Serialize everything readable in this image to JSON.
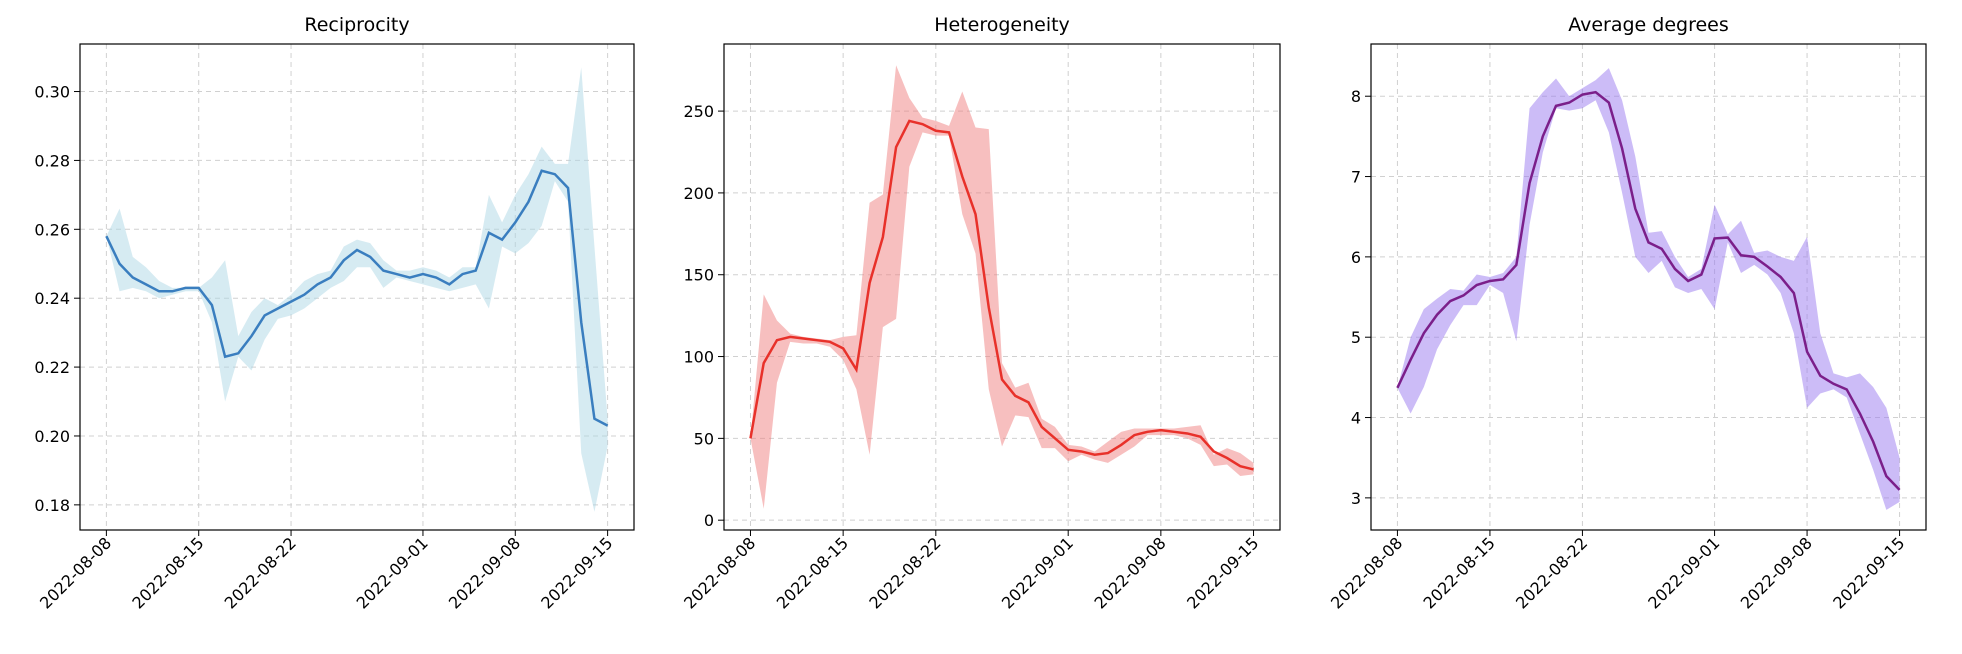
{
  "chart_data": [
    {
      "type": "line",
      "title": "Reciprocity",
      "x": [
        "2022-08-08",
        "2022-08-09",
        "2022-08-10",
        "2022-08-11",
        "2022-08-12",
        "2022-08-13",
        "2022-08-14",
        "2022-08-15",
        "2022-08-16",
        "2022-08-17",
        "2022-08-18",
        "2022-08-19",
        "2022-08-20",
        "2022-08-21",
        "2022-08-22",
        "2022-08-23",
        "2022-08-24",
        "2022-08-25",
        "2022-08-26",
        "2022-08-27",
        "2022-08-28",
        "2022-08-29",
        "2022-08-30",
        "2022-08-31",
        "2022-09-01",
        "2022-09-02",
        "2022-09-03",
        "2022-09-04",
        "2022-09-05",
        "2022-09-06",
        "2022-09-07",
        "2022-09-08",
        "2022-09-09",
        "2022-09-10",
        "2022-09-11",
        "2022-09-12",
        "2022-09-13",
        "2022-09-14",
        "2022-09-15"
      ],
      "series": [
        {
          "color": "#3a7ebf",
          "band_color": "#add8e6",
          "values": [
            0.258,
            0.25,
            0.246,
            0.244,
            0.242,
            0.242,
            0.243,
            0.243,
            0.238,
            0.223,
            0.224,
            0.229,
            0.235,
            0.237,
            0.239,
            0.241,
            0.244,
            0.246,
            0.251,
            0.254,
            0.252,
            0.248,
            0.247,
            0.246,
            0.247,
            0.246,
            0.244,
            0.247,
            0.248,
            0.259,
            0.257,
            0.262,
            0.268,
            0.277,
            0.276,
            0.272,
            0.233,
            0.205,
            0.203
          ],
          "upper": [
            0.258,
            0.266,
            0.252,
            0.249,
            0.245,
            0.243,
            0.243,
            0.243,
            0.246,
            0.251,
            0.229,
            0.236,
            0.24,
            0.238,
            0.241,
            0.245,
            0.247,
            0.248,
            0.255,
            0.257,
            0.256,
            0.251,
            0.248,
            0.248,
            0.249,
            0.248,
            0.246,
            0.249,
            0.249,
            0.27,
            0.262,
            0.27,
            0.276,
            0.284,
            0.279,
            0.279,
            0.307,
            0.255,
            0.205
          ],
          "lower": [
            0.258,
            0.242,
            0.243,
            0.242,
            0.24,
            0.241,
            0.242,
            0.242,
            0.233,
            0.21,
            0.223,
            0.219,
            0.228,
            0.234,
            0.235,
            0.237,
            0.24,
            0.243,
            0.245,
            0.249,
            0.249,
            0.243,
            0.246,
            0.245,
            0.244,
            0.243,
            0.242,
            0.243,
            0.244,
            0.237,
            0.255,
            0.253,
            0.256,
            0.261,
            0.274,
            0.268,
            0.195,
            0.178,
            0.197
          ]
        }
      ],
      "xlim": [
        "2022-08-06",
        "2022-09-17"
      ],
      "xticks": [
        "2022-08-08",
        "2022-08-15",
        "2022-08-22",
        "2022-09-01",
        "2022-09-08",
        "2022-09-15"
      ],
      "ylim": [
        0.1727,
        0.3138
      ],
      "yticks": [
        0.18,
        {
          "value": 0.2,
          "label": "0.20"
        },
        0.22,
        0.24,
        0.26,
        0.28,
        {
          "value": 0.3,
          "label": "0.30"
        }
      ],
      "grid": true
    },
    {
      "type": "line",
      "title": "Heterogeneity",
      "x": [
        "2022-08-08",
        "2022-08-09",
        "2022-08-10",
        "2022-08-11",
        "2022-08-12",
        "2022-08-13",
        "2022-08-14",
        "2022-08-15",
        "2022-08-16",
        "2022-08-17",
        "2022-08-18",
        "2022-08-19",
        "2022-08-20",
        "2022-08-21",
        "2022-08-22",
        "2022-08-23",
        "2022-08-24",
        "2022-08-25",
        "2022-08-26",
        "2022-08-27",
        "2022-08-28",
        "2022-08-29",
        "2022-08-30",
        "2022-08-31",
        "2022-09-01",
        "2022-09-02",
        "2022-09-03",
        "2022-09-04",
        "2022-09-05",
        "2022-09-06",
        "2022-09-07",
        "2022-09-08",
        "2022-09-09",
        "2022-09-10",
        "2022-09-11",
        "2022-09-12",
        "2022-09-13",
        "2022-09-14",
        "2022-09-15"
      ],
      "series": [
        {
          "color": "#e8312a",
          "band_color": "#f08080",
          "values": [
            50,
            96,
            110,
            112,
            111,
            110,
            109,
            105,
            92,
            145,
            173,
            228,
            244,
            242,
            238,
            237,
            210,
            187,
            130,
            86,
            76,
            72,
            57,
            50,
            43,
            42,
            40,
            41,
            46,
            52,
            54,
            55,
            54,
            53,
            51,
            42,
            38,
            33,
            31
          ],
          "upper": [
            50,
            138,
            122,
            114,
            112,
            111,
            110,
            112,
            113,
            194,
            199,
            278,
            258,
            246,
            244,
            241,
            262,
            240,
            239,
            96,
            81,
            84,
            62,
            57,
            46,
            45,
            42,
            48,
            54,
            56,
            56,
            56,
            56,
            57,
            58,
            40,
            44,
            41,
            35
          ],
          "lower": [
            50,
            7,
            84,
            109,
            108,
            108,
            106,
            98,
            80,
            40,
            118,
            123,
            216,
            237,
            235,
            235,
            187,
            163,
            80,
            45,
            64,
            63,
            44,
            44,
            36,
            40,
            37,
            35,
            40,
            45,
            52,
            52,
            52,
            50,
            46,
            33,
            34,
            27,
            28
          ]
        }
      ],
      "xlim": [
        "2022-08-06",
        "2022-09-17"
      ],
      "xticks": [
        "2022-08-08",
        "2022-08-15",
        "2022-08-22",
        "2022-09-01",
        "2022-09-08",
        "2022-09-15"
      ],
      "ylim": [
        -6,
        291
      ],
      "yticks": [
        0,
        50,
        100,
        150,
        200,
        250
      ],
      "grid": true
    },
    {
      "type": "line",
      "title": "Average degrees",
      "x": [
        "2022-08-08",
        "2022-08-09",
        "2022-08-10",
        "2022-08-11",
        "2022-08-12",
        "2022-08-13",
        "2022-08-14",
        "2022-08-15",
        "2022-08-16",
        "2022-08-17",
        "2022-08-18",
        "2022-08-19",
        "2022-08-20",
        "2022-08-21",
        "2022-08-22",
        "2022-08-23",
        "2022-08-24",
        "2022-08-25",
        "2022-08-26",
        "2022-08-27",
        "2022-08-28",
        "2022-08-29",
        "2022-08-30",
        "2022-08-31",
        "2022-09-01",
        "2022-09-02",
        "2022-09-03",
        "2022-09-04",
        "2022-09-05",
        "2022-09-06",
        "2022-09-07",
        "2022-09-08",
        "2022-09-09",
        "2022-09-10",
        "2022-09-11",
        "2022-09-12",
        "2022-09-13",
        "2022-09-14",
        "2022-09-15"
      ],
      "series": [
        {
          "color": "#7b1f8a",
          "band_color": "#9a7af0",
          "values": [
            4.37,
            4.72,
            5.05,
            5.28,
            5.45,
            5.52,
            5.65,
            5.7,
            5.72,
            5.9,
            6.92,
            7.5,
            7.88,
            7.92,
            8.02,
            8.05,
            7.92,
            7.35,
            6.6,
            6.18,
            6.1,
            5.85,
            5.7,
            5.78,
            6.23,
            6.24,
            6.02,
            6.0,
            5.88,
            5.75,
            5.55,
            4.82,
            4.52,
            4.42,
            4.35,
            4.05,
            3.7,
            3.27,
            3.1
          ],
          "upper": [
            4.37,
            5.0,
            5.35,
            5.48,
            5.6,
            5.58,
            5.78,
            5.75,
            5.8,
            6.0,
            7.85,
            8.05,
            8.22,
            8.0,
            8.1,
            8.2,
            8.35,
            7.95,
            7.25,
            6.3,
            6.32,
            6.0,
            5.75,
            5.85,
            6.65,
            6.28,
            6.45,
            6.05,
            6.08,
            6.0,
            5.95,
            6.25,
            5.05,
            4.55,
            4.5,
            4.55,
            4.38,
            4.12,
            3.5
          ],
          "lower": [
            4.37,
            4.05,
            4.38,
            4.85,
            5.15,
            5.4,
            5.4,
            5.65,
            5.55,
            4.95,
            6.4,
            7.3,
            7.85,
            7.82,
            7.85,
            7.95,
            7.55,
            6.8,
            6.0,
            5.8,
            5.95,
            5.62,
            5.55,
            5.6,
            5.35,
            6.18,
            5.8,
            5.9,
            5.78,
            5.55,
            5.05,
            4.12,
            4.3,
            4.35,
            4.25,
            3.8,
            3.35,
            2.85,
            2.95
          ]
        }
      ],
      "xlim": [
        "2022-08-06",
        "2022-09-17"
      ],
      "xticks": [
        "2022-08-08",
        "2022-08-15",
        "2022-08-22",
        "2022-09-01",
        "2022-09-08",
        "2022-09-15"
      ],
      "ylim": [
        2.6,
        8.65
      ],
      "yticks": [
        3,
        4,
        5,
        6,
        7,
        8
      ],
      "grid": true
    }
  ]
}
